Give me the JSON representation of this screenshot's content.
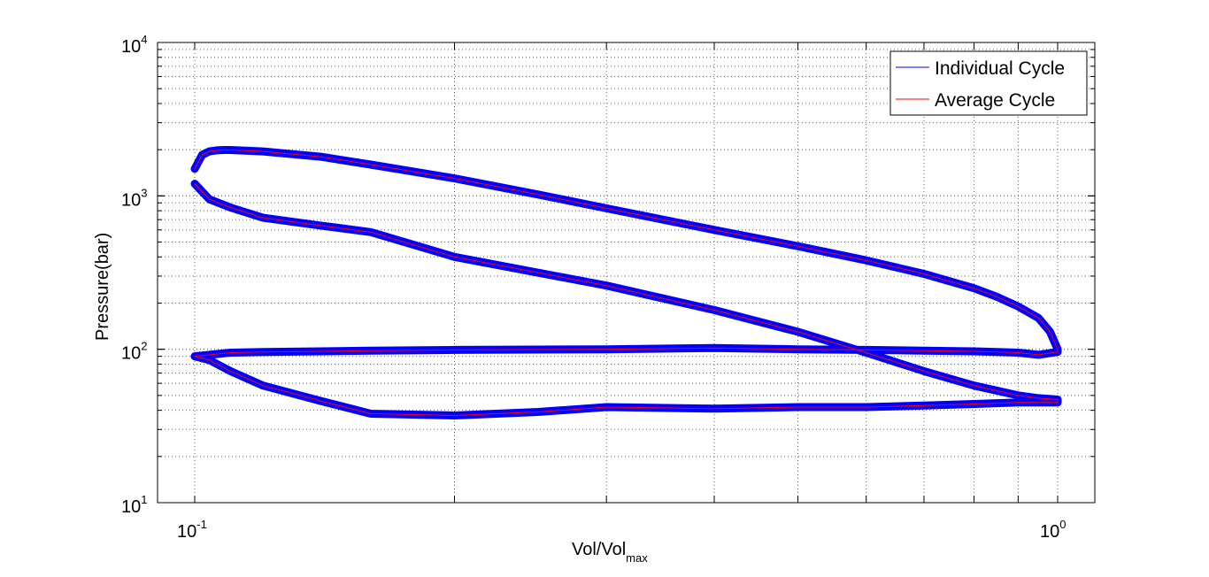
{
  "chart_data": {
    "type": "line",
    "xlabel": "Vol/Vol",
    "xlabel_subscript": "max",
    "ylabel": "Pressure(bar)",
    "x_scale": "log",
    "y_scale": "log",
    "xlim": [
      0.1,
      1.0
    ],
    "ylim": [
      10,
      10000
    ],
    "grid": true,
    "legend_position": "top-right",
    "x_ticks": [
      {
        "value": 0.1,
        "base": "10",
        "exp": "-1"
      },
      {
        "value": 1.0,
        "base": "10",
        "exp": "0"
      }
    ],
    "y_ticks": [
      {
        "value": 10,
        "base": "10",
        "exp": "1"
      },
      {
        "value": 100,
        "base": "10",
        "exp": "2"
      },
      {
        "value": 1000,
        "base": "10",
        "exp": "3"
      },
      {
        "value": 10000,
        "base": "10",
        "exp": "4"
      }
    ],
    "colors": {
      "individual": "#0000ff",
      "average": "#ff0000",
      "grid": "#666666"
    },
    "series": [
      {
        "name": "Individual Cycle",
        "color": "#0000ff",
        "description_band": true,
        "x": [
          0.1,
          0.102,
          0.104,
          0.106,
          0.108,
          0.11,
          0.12,
          0.14,
          0.16,
          0.2,
          0.25,
          0.3,
          0.4,
          0.5,
          0.6,
          0.7,
          0.8,
          0.85,
          0.9,
          0.95,
          0.98,
          1.0,
          1.0,
          0.95,
          0.9,
          0.8,
          0.7,
          0.6,
          0.5,
          0.4,
          0.3,
          0.2,
          0.16,
          0.14,
          0.12,
          0.11,
          0.104,
          0.1,
          0.1,
          0.104,
          0.11,
          0.12,
          0.14,
          0.16,
          0.2,
          0.25,
          0.3,
          0.4,
          0.5,
          0.6,
          0.7,
          0.8,
          0.9,
          0.95,
          1.0,
          1.0,
          0.95,
          0.9,
          0.8,
          0.7,
          0.6,
          0.5,
          0.4,
          0.3,
          0.2,
          0.16,
          0.14,
          0.12,
          0.11,
          0.104,
          0.1
        ],
        "y": [
          1500,
          1850,
          1950,
          1980,
          1990,
          1990,
          1950,
          1800,
          1600,
          1300,
          1020,
          830,
          600,
          470,
          380,
          310,
          250,
          220,
          190,
          160,
          130,
          100,
          96,
          92,
          95,
          97,
          98,
          99,
          100,
          102,
          100,
          99,
          98,
          97,
          96,
          95,
          92,
          90,
          90,
          85,
          72,
          58,
          46,
          38,
          37,
          39,
          42,
          41,
          42,
          42,
          43,
          44,
          45,
          45,
          45,
          47,
          48,
          50,
          58,
          72,
          95,
          130,
          180,
          260,
          400,
          580,
          640,
          720,
          840,
          950,
          1200
        ]
      },
      {
        "name": "Average Cycle",
        "color": "#ff0000",
        "x": [
          0.1,
          0.102,
          0.104,
          0.106,
          0.108,
          0.11,
          0.12,
          0.14,
          0.16,
          0.2,
          0.25,
          0.3,
          0.4,
          0.5,
          0.6,
          0.7,
          0.8,
          0.85,
          0.9,
          0.95,
          0.98,
          1.0,
          1.0,
          0.95,
          0.9,
          0.8,
          0.7,
          0.6,
          0.5,
          0.4,
          0.3,
          0.2,
          0.16,
          0.14,
          0.12,
          0.11,
          0.104,
          0.1,
          0.1,
          0.104,
          0.11,
          0.12,
          0.14,
          0.16,
          0.2,
          0.25,
          0.3,
          0.4,
          0.5,
          0.6,
          0.7,
          0.8,
          0.9,
          0.95,
          1.0,
          1.0,
          0.95,
          0.9,
          0.8,
          0.7,
          0.6,
          0.5,
          0.4,
          0.3,
          0.2,
          0.16,
          0.14,
          0.12,
          0.11,
          0.104,
          0.1
        ],
        "y": [
          1500,
          1850,
          1950,
          1980,
          1990,
          1990,
          1950,
          1800,
          1600,
          1300,
          1020,
          830,
          600,
          470,
          380,
          310,
          250,
          220,
          190,
          160,
          130,
          100,
          96,
          92,
          95,
          97,
          98,
          99,
          100,
          102,
          100,
          99,
          98,
          97,
          96,
          95,
          92,
          90,
          90,
          85,
          72,
          58,
          46,
          38,
          37,
          39,
          42,
          41,
          42,
          42,
          43,
          44,
          45,
          45,
          45,
          47,
          48,
          50,
          58,
          72,
          95,
          130,
          180,
          260,
          400,
          580,
          640,
          720,
          840,
          950,
          1200
        ]
      }
    ]
  }
}
